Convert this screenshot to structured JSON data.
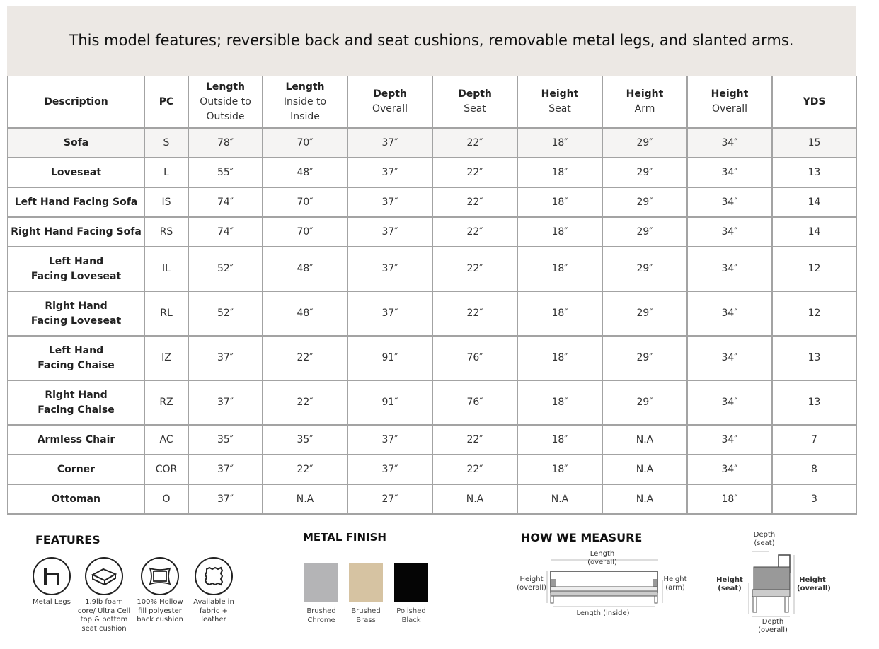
{
  "banner": "This model features; reversible back and seat cushions, removable metal legs, and slanted arms.",
  "table": {
    "headers": [
      {
        "bold": "Description",
        "sub": ""
      },
      {
        "bold": "PC",
        "sub": ""
      },
      {
        "bold": "Length",
        "sub": "Outside to Outside"
      },
      {
        "bold": "Length",
        "sub": "Inside to Inside"
      },
      {
        "bold": "Depth",
        "sub": "Overall"
      },
      {
        "bold": "Depth",
        "sub": "Seat"
      },
      {
        "bold": "Height",
        "sub": "Seat"
      },
      {
        "bold": "Height",
        "sub": "Arm"
      },
      {
        "bold": "Height",
        "sub": "Overall"
      },
      {
        "bold": "YDS",
        "sub": ""
      }
    ],
    "rows": [
      [
        "Sofa",
        "S",
        "78″",
        "70″",
        "37″",
        "22″",
        "18″",
        "29″",
        "34″",
        "15"
      ],
      [
        "Loveseat",
        "L",
        "55″",
        "48″",
        "37″",
        "22″",
        "18″",
        "29″",
        "34″",
        "13"
      ],
      [
        "Left Hand Facing Sofa",
        "IS",
        "74″",
        "70″",
        "37″",
        "22″",
        "18″",
        "29″",
        "34″",
        "14"
      ],
      [
        "Right Hand Facing Sofa",
        "RS",
        "74″",
        "70″",
        "37″",
        "22″",
        "18″",
        "29″",
        "34″",
        "14"
      ],
      [
        "Left Hand\nFacing Loveseat",
        "IL",
        "52″",
        "48″",
        "37″",
        "22″",
        "18″",
        "29″",
        "34″",
        "12"
      ],
      [
        "Right Hand\nFacing Loveseat",
        "RL",
        "52″",
        "48″",
        "37″",
        "22″",
        "18″",
        "29″",
        "34″",
        "12"
      ],
      [
        "Left Hand\nFacing Chaise",
        "IZ",
        "37″",
        "22″",
        "91″",
        "76″",
        "18″",
        "29″",
        "34″",
        "13"
      ],
      [
        "Right Hand\nFacing Chaise",
        "RZ",
        "37″",
        "22″",
        "91″",
        "76″",
        "18″",
        "29″",
        "34″",
        "13"
      ],
      [
        "Armless Chair",
        "AC",
        "35″",
        "35″",
        "37″",
        "22″",
        "18″",
        "N.A",
        "34″",
        "7"
      ],
      [
        "Corner",
        "COR",
        "37″",
        "22″",
        "37″",
        "22″",
        "18″",
        "N.A",
        "34″",
        "8"
      ],
      [
        "Ottoman",
        "O",
        "37″",
        "N.A",
        "27″",
        "N.A",
        "N.A",
        "N.A",
        "18″",
        "3"
      ]
    ]
  },
  "features": {
    "title": "FEATURES",
    "items": [
      {
        "icon": "metal-legs-icon",
        "label": "Metal Legs"
      },
      {
        "icon": "foam-cushion-icon",
        "label": "1.9lb foam core/ Ultra Cell top & bottom seat cushion"
      },
      {
        "icon": "pillow-icon",
        "label": "100% Hollow fill polyester back cushion"
      },
      {
        "icon": "fabric-swatch-icon",
        "label": "Available in fabric + leather"
      }
    ]
  },
  "metal_finish": {
    "title": "METAL FINISH",
    "items": [
      {
        "label": "Brushed Chrome",
        "color": "#b4b4b6"
      },
      {
        "label": "Brushed Brass",
        "color": "#d6c3a2"
      },
      {
        "label": "Polished Black",
        "color": "#050505"
      }
    ]
  },
  "measure": {
    "title": "HOW WE MEASURE",
    "length_overall": "Length (overall)",
    "height_overall": "Height (overall)",
    "height_arm": "Height (arm)",
    "length_inside": "Length (inside)",
    "depth_seat": "Depth (seat)",
    "height_seat": "Height (seat)",
    "height_overall_side": "Height (overall)",
    "depth_overall": "Depth (overall)"
  }
}
